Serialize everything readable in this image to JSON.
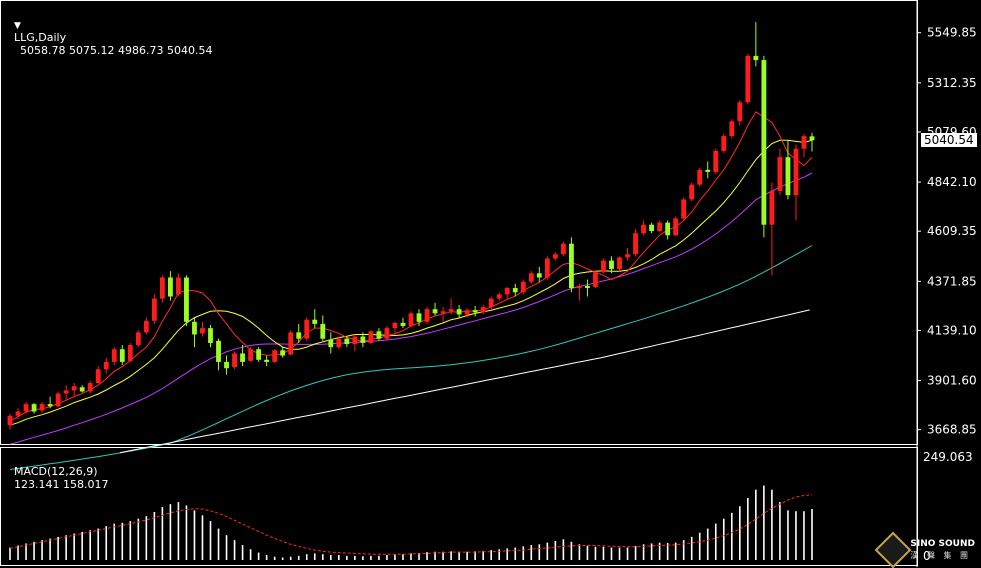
{
  "header": {
    "symbol": "LLG,Daily",
    "ohlc": "5058.78 5075.12 4986.73 5040.54",
    "triangle": "▼"
  },
  "macd_header": {
    "label": "MACD(12,26,9)",
    "values": "123.141 158.017"
  },
  "current_price": "5040.54",
  "macd_axis_top": "249.063",
  "macd_axis_zero": "0",
  "logo": {
    "name": "SINO SOUND",
    "sub": "漢 聲 集 團"
  },
  "colors": {
    "bull": "#ff1c1c",
    "bear": "#9bff1f",
    "ma5": "#ff2b2b",
    "ma10": "#ffff3a",
    "ma20": "#c23cff",
    "ma60": "#2fc7c0",
    "ma120": "#ffffff",
    "signal": "#ff2a2a",
    "hist": "#ffffff"
  },
  "chart_data": {
    "type": "candlestick",
    "title": "LLG,Daily",
    "price_ticks": [
      "5549.85",
      "5312.35",
      "5079.60",
      "4842.10",
      "4609.35",
      "4371.85",
      "4139.10",
      "3901.60",
      "3668.85"
    ],
    "ylim": [
      3620,
      5610
    ],
    "candles": [
      [
        3690,
        3745,
        3670,
        3735
      ],
      [
        3735,
        3770,
        3720,
        3755
      ],
      [
        3755,
        3800,
        3745,
        3790
      ],
      [
        3790,
        3795,
        3745,
        3755
      ],
      [
        3760,
        3800,
        3750,
        3790
      ],
      [
        3790,
        3825,
        3770,
        3780
      ],
      [
        3780,
        3850,
        3775,
        3840
      ],
      [
        3840,
        3880,
        3810,
        3855
      ],
      [
        3855,
        3890,
        3830,
        3875
      ],
      [
        3870,
        3880,
        3845,
        3850
      ],
      [
        3850,
        3900,
        3840,
        3890
      ],
      [
        3890,
        3970,
        3885,
        3955
      ],
      [
        3955,
        4010,
        3935,
        3990
      ],
      [
        3990,
        4060,
        3975,
        4050
      ],
      [
        4050,
        4070,
        3975,
        3990
      ],
      [
        3995,
        4080,
        3990,
        4070
      ],
      [
        4070,
        4140,
        4060,
        4130
      ],
      [
        4130,
        4200,
        4120,
        4185
      ],
      [
        4185,
        4310,
        4170,
        4290
      ],
      [
        4290,
        4400,
        4270,
        4390
      ],
      [
        4390,
        4420,
        4280,
        4300
      ],
      [
        4310,
        4410,
        4300,
        4390
      ],
      [
        4390,
        4400,
        4160,
        4180
      ],
      [
        4180,
        4200,
        4060,
        4120
      ],
      [
        4125,
        4180,
        4110,
        4150
      ],
      [
        4150,
        4165,
        4060,
        4080
      ],
      [
        4090,
        4100,
        3950,
        3990
      ],
      [
        3990,
        4020,
        3930,
        3960
      ],
      [
        3965,
        4040,
        3955,
        4030
      ],
      [
        4030,
        4070,
        3970,
        3990
      ],
      [
        3995,
        4060,
        3990,
        4050
      ],
      [
        4050,
        4060,
        3990,
        4000
      ],
      [
        4000,
        4020,
        3970,
        3990
      ],
      [
        3990,
        4050,
        3985,
        4045
      ],
      [
        4045,
        4060,
        4010,
        4020
      ],
      [
        4025,
        4140,
        4020,
        4130
      ],
      [
        4130,
        4170,
        4080,
        4100
      ],
      [
        4100,
        4200,
        4090,
        4190
      ],
      [
        4190,
        4240,
        4150,
        4170
      ],
      [
        4170,
        4210,
        4090,
        4100
      ],
      [
        4095,
        4130,
        4030,
        4060
      ],
      [
        4060,
        4110,
        4050,
        4100
      ],
      [
        4100,
        4110,
        4060,
        4075
      ],
      [
        4075,
        4120,
        4040,
        4110
      ],
      [
        4110,
        4130,
        4060,
        4080
      ],
      [
        4080,
        4140,
        4075,
        4135
      ],
      [
        4135,
        4150,
        4090,
        4100
      ],
      [
        4100,
        4160,
        4095,
        4150
      ],
      [
        4150,
        4180,
        4120,
        4175
      ],
      [
        4175,
        4200,
        4150,
        4160
      ],
      [
        4160,
        4230,
        4155,
        4220
      ],
      [
        4220,
        4240,
        4160,
        4180
      ],
      [
        4180,
        4250,
        4170,
        4240
      ],
      [
        4240,
        4270,
        4210,
        4220
      ],
      [
        4220,
        4250,
        4180,
        4230
      ],
      [
        4230,
        4290,
        4215,
        4240
      ],
      [
        4240,
        4260,
        4200,
        4215
      ],
      [
        4215,
        4245,
        4200,
        4235
      ],
      [
        4235,
        4255,
        4205,
        4225
      ],
      [
        4225,
        4260,
        4215,
        4250
      ],
      [
        4250,
        4300,
        4240,
        4290
      ],
      [
        4290,
        4320,
        4280,
        4310
      ],
      [
        4310,
        4345,
        4290,
        4340
      ],
      [
        4340,
        4360,
        4300,
        4320
      ],
      [
        4320,
        4380,
        4310,
        4370
      ],
      [
        4370,
        4420,
        4360,
        4410
      ],
      [
        4410,
        4440,
        4370,
        4390
      ],
      [
        4390,
        4490,
        4380,
        4480
      ],
      [
        4480,
        4510,
        4470,
        4500
      ],
      [
        4500,
        4560,
        4490,
        4550
      ],
      [
        4550,
        4580,
        4320,
        4340
      ],
      [
        4340,
        4360,
        4280,
        4350
      ],
      [
        4350,
        4380,
        4300,
        4340
      ],
      [
        4345,
        4420,
        4340,
        4415
      ],
      [
        4415,
        4480,
        4410,
        4470
      ],
      [
        4470,
        4490,
        4410,
        4430
      ],
      [
        4430,
        4490,
        4420,
        4485
      ],
      [
        4485,
        4530,
        4470,
        4500
      ],
      [
        4500,
        4620,
        4490,
        4600
      ],
      [
        4600,
        4660,
        4590,
        4640
      ],
      [
        4640,
        4650,
        4600,
        4610
      ],
      [
        4610,
        4660,
        4605,
        4650
      ],
      [
        4650,
        4660,
        4570,
        4590
      ],
      [
        4590,
        4680,
        4585,
        4670
      ],
      [
        4670,
        4770,
        4660,
        4760
      ],
      [
        4760,
        4840,
        4750,
        4830
      ],
      [
        4830,
        4910,
        4820,
        4900
      ],
      [
        4900,
        4940,
        4860,
        4890
      ],
      [
        4890,
        5000,
        4880,
        4990
      ],
      [
        4990,
        5070,
        4980,
        5060
      ],
      [
        5060,
        5140,
        5050,
        5130
      ],
      [
        5130,
        5230,
        5110,
        5220
      ],
      [
        5220,
        5450,
        5210,
        5440
      ],
      [
        5440,
        5600,
        5390,
        5420
      ],
      [
        5420,
        5440,
        4580,
        4640
      ],
      [
        4640,
        4840,
        4400,
        4800
      ],
      [
        4800,
        5000,
        4780,
        4960
      ],
      [
        4960,
        5040,
        4760,
        4780
      ],
      [
        4780,
        5020,
        4660,
        5000
      ],
      [
        5000,
        5070,
        4960,
        5060
      ],
      [
        5058.78,
        5075.12,
        4986.73,
        5040.54
      ]
    ],
    "ma5": [
      3710,
      3730,
      3752,
      3764,
      3768,
      3778,
      3793,
      3808,
      3826,
      3840,
      3858,
      3880,
      3910,
      3946,
      3968,
      3996,
      4030,
      4060,
      4110,
      4183,
      4247,
      4318,
      4330,
      4327,
      4316,
      4280,
      4218,
      4170,
      4120,
      4082,
      4047,
      4030,
      4022,
      4023,
      4030,
      4050,
      4085,
      4127,
      4150,
      4150,
      4139,
      4125,
      4106,
      4096,
      4085,
      4098,
      4102,
      4114,
      4124,
      4138,
      4160,
      4176,
      4192,
      4208,
      4218,
      4228,
      4226,
      4230,
      4232,
      4236,
      4250,
      4268,
      4286,
      4302,
      4328,
      4348,
      4367,
      4392,
      4424,
      4452,
      4460,
      4448,
      4430,
      4415,
      4400,
      4380,
      4398,
      4420,
      4465,
      4510,
      4550,
      4590,
      4615,
      4630,
      4660,
      4700,
      4755,
      4800,
      4852,
      4900,
      4963,
      5030,
      5110,
      5175,
      5150,
      5125,
      5060,
      4980,
      4950,
      4920,
      4960
    ],
    "ma10": [
      3690,
      3702,
      3718,
      3730,
      3740,
      3752,
      3766,
      3780,
      3797,
      3810,
      3823,
      3838,
      3857,
      3878,
      3898,
      3922,
      3950,
      3978,
      4010,
      4050,
      4095,
      4140,
      4175,
      4200,
      4215,
      4230,
      4232,
      4230,
      4220,
      4205,
      4180,
      4150,
      4115,
      4085,
      4060,
      4050,
      4050,
      4060,
      4075,
      4085,
      4095,
      4105,
      4112,
      4120,
      4120,
      4120,
      4118,
      4116,
      4115,
      4118,
      4125,
      4136,
      4150,
      4162,
      4175,
      4190,
      4198,
      4210,
      4220,
      4228,
      4235,
      4245,
      4255,
      4265,
      4280,
      4298,
      4318,
      4338,
      4360,
      4385,
      4402,
      4410,
      4416,
      4420,
      4422,
      4420,
      4420,
      4425,
      4438,
      4455,
      4475,
      4500,
      4520,
      4540,
      4568,
      4600,
      4635,
      4670,
      4705,
      4745,
      4790,
      4840,
      4895,
      4948,
      4990,
      5025,
      5040,
      5040,
      5035,
      5030,
      5040
    ],
    "ma20": [
      3600,
      3610,
      3622,
      3633,
      3643,
      3654,
      3665,
      3677,
      3690,
      3702,
      3715,
      3728,
      3742,
      3757,
      3772,
      3788,
      3805,
      3822,
      3842,
      3864,
      3888,
      3913,
      3938,
      3962,
      3985,
      4005,
      4022,
      4038,
      4050,
      4060,
      4068,
      4073,
      4075,
      4075,
      4075,
      4074,
      4073,
      4073,
      4073,
      4074,
      4076,
      4078,
      4080,
      4082,
      4085,
      4087,
      4090,
      4094,
      4098,
      4104,
      4110,
      4118,
      4126,
      4135,
      4145,
      4155,
      4165,
      4175,
      4185,
      4195,
      4205,
      4215,
      4225,
      4236,
      4248,
      4262,
      4276,
      4292,
      4308,
      4325,
      4338,
      4348,
      4356,
      4365,
      4374,
      4383,
      4394,
      4405,
      4418,
      4432,
      4446,
      4460,
      4474,
      4488,
      4505,
      4524,
      4546,
      4570,
      4596,
      4625,
      4655,
      4688,
      4722,
      4758,
      4780,
      4800,
      4818,
      4835,
      4850,
      4865,
      4885
    ]
  },
  "macd_data": {
    "histogram": [
      30,
      35,
      40,
      44,
      48,
      52,
      56,
      60,
      64,
      68,
      72,
      76,
      82,
      88,
      90,
      94,
      100,
      106,
      116,
      128,
      135,
      140,
      132,
      120,
      108,
      94,
      76,
      60,
      48,
      36,
      26,
      18,
      12,
      8,
      6,
      8,
      10,
      14,
      16,
      14,
      12,
      12,
      10,
      10,
      9,
      10,
      10,
      12,
      13,
      14,
      16,
      17,
      19,
      20,
      20,
      21,
      20,
      20,
      21,
      22,
      24,
      26,
      28,
      30,
      33,
      36,
      38,
      42,
      46,
      50,
      44,
      38,
      34,
      32,
      32,
      30,
      30,
      30,
      34,
      38,
      40,
      42,
      41,
      42,
      48,
      56,
      66,
      76,
      88,
      100,
      114,
      130,
      150,
      170,
      180,
      170,
      140,
      120,
      118,
      118,
      123.141
    ],
    "signal": [
      28,
      32,
      36,
      40,
      44,
      48,
      52,
      56,
      60,
      64,
      68,
      72,
      76,
      80,
      84,
      88,
      92,
      97,
      102,
      108,
      114,
      119,
      122,
      124,
      123,
      119,
      113,
      105,
      96,
      87,
      78,
      69,
      60,
      52,
      45,
      38,
      33,
      28,
      24,
      21,
      19,
      18,
      17,
      16,
      15,
      14,
      14,
      14,
      14,
      14,
      15,
      15,
      16,
      17,
      18,
      19,
      19,
      19,
      19,
      20,
      20,
      21,
      22,
      23,
      24,
      26,
      28,
      29,
      31,
      33,
      34,
      35,
      35,
      35,
      34,
      33,
      33,
      32,
      32,
      33,
      34,
      35,
      36,
      37,
      39,
      41,
      44,
      48,
      53,
      59,
      66,
      75,
      86,
      99,
      113,
      125,
      135,
      145,
      152,
      156,
      158.017
    ],
    "ylim": [
      0,
      249.063
    ]
  }
}
